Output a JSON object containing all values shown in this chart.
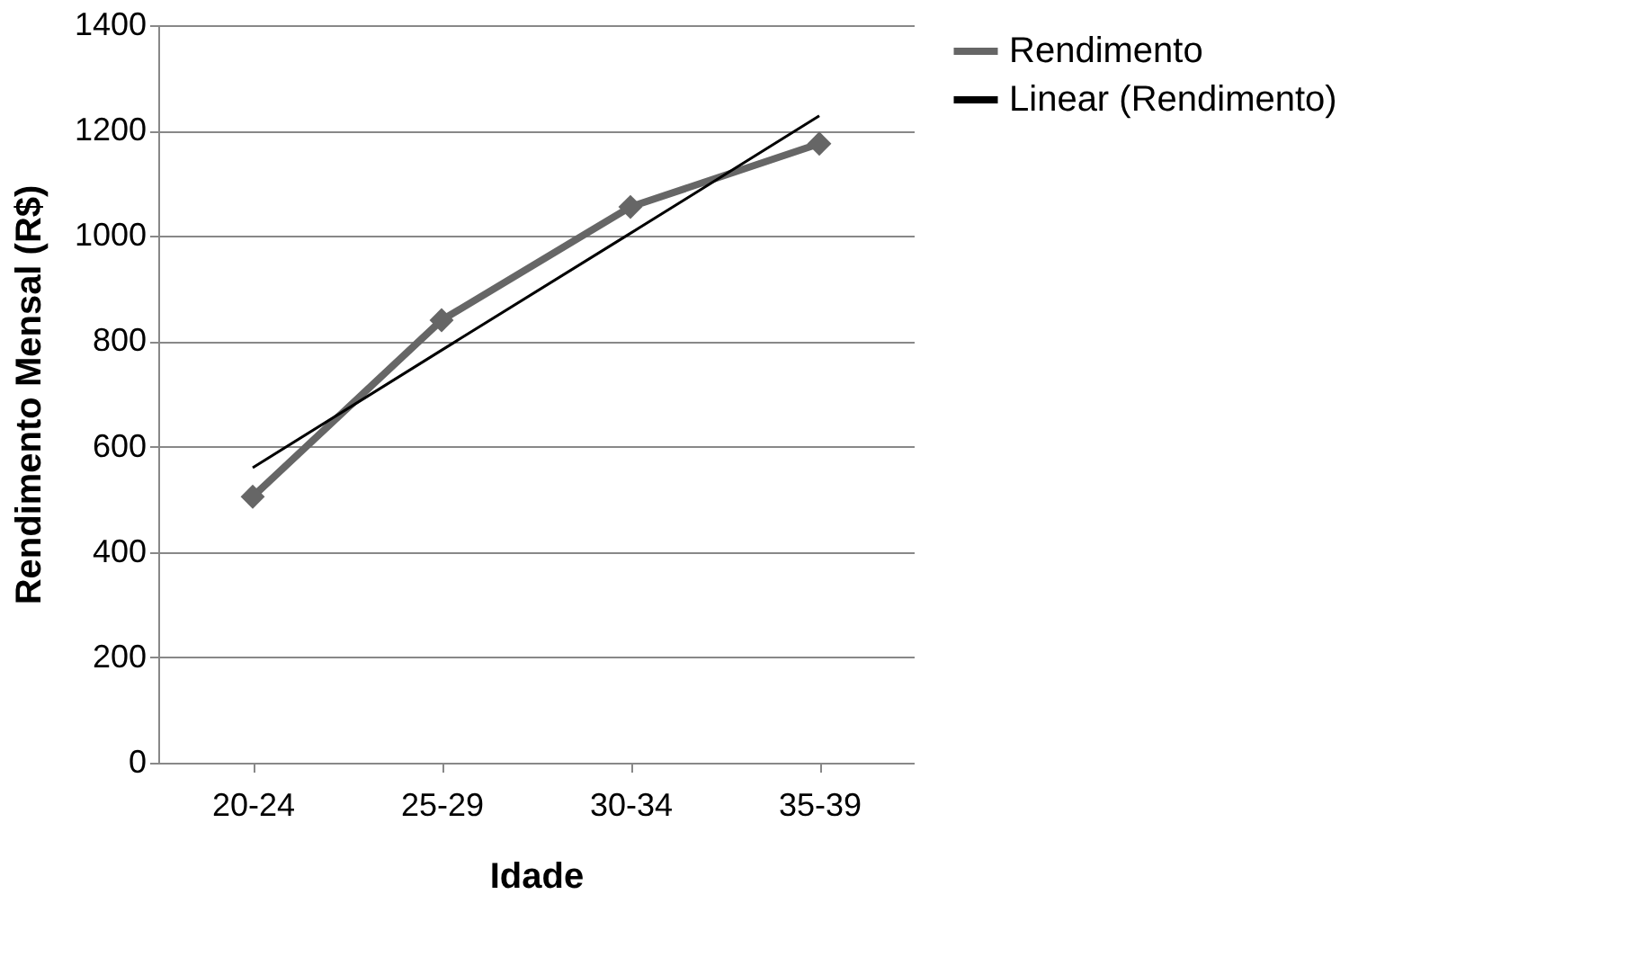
{
  "chart_data": {
    "type": "line",
    "xlabel": "Idade",
    "ylabel": "Rendimento Mensal (R$)",
    "categories": [
      "20-24",
      "25-29",
      "30-34",
      "35-39"
    ],
    "series": [
      {
        "name": "Rendimento",
        "color": "#666666",
        "values": [
          505,
          840,
          1055,
          1175
        ],
        "marker": "diamond"
      },
      {
        "name": "Linear (Rendimento)",
        "color": "#000000",
        "values": [
          560,
          783,
          1005,
          1228
        ],
        "marker": "none"
      }
    ],
    "ylim": [
      0,
      1400
    ],
    "yticks": [
      0,
      200,
      400,
      600,
      800,
      1000,
      1200,
      1400
    ],
    "grid": "y",
    "legend": "right",
    "line_style": "solid"
  }
}
